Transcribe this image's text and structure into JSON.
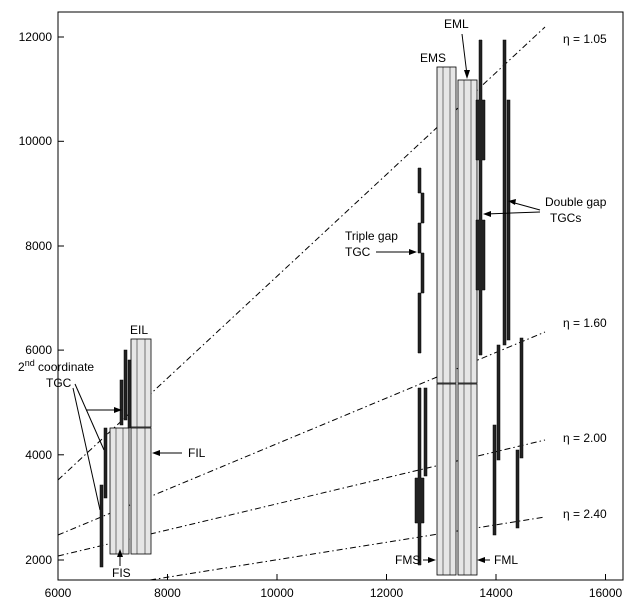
{
  "axes": {
    "x_ticks": [
      "6000",
      "8000",
      "10000",
      "12000",
      "14000",
      "16000"
    ],
    "y_ticks": [
      "2000",
      "4000",
      "6000",
      "8000",
      "10000",
      "12000"
    ]
  },
  "labels": {
    "eta_105": "η = 1.05",
    "eta_160": "η = 1.60",
    "eta_200": "η = 2.00",
    "eta_240": "η = 2.40",
    "eil": "EIL",
    "fil": "FIL",
    "fis": "FIS",
    "ems": "EMS",
    "eml": "EML",
    "fms": "FMS",
    "fml": "FML",
    "coord_2nd_a": "2",
    "coord_2nd_sup": "nd",
    "coord_2nd_b": " coordinate",
    "coord_tgc": "TGC",
    "triple_line1": "Triple gap",
    "triple_line2": "TGC",
    "double_line1": "Double gap",
    "double_line2": "TGCs"
  }
}
